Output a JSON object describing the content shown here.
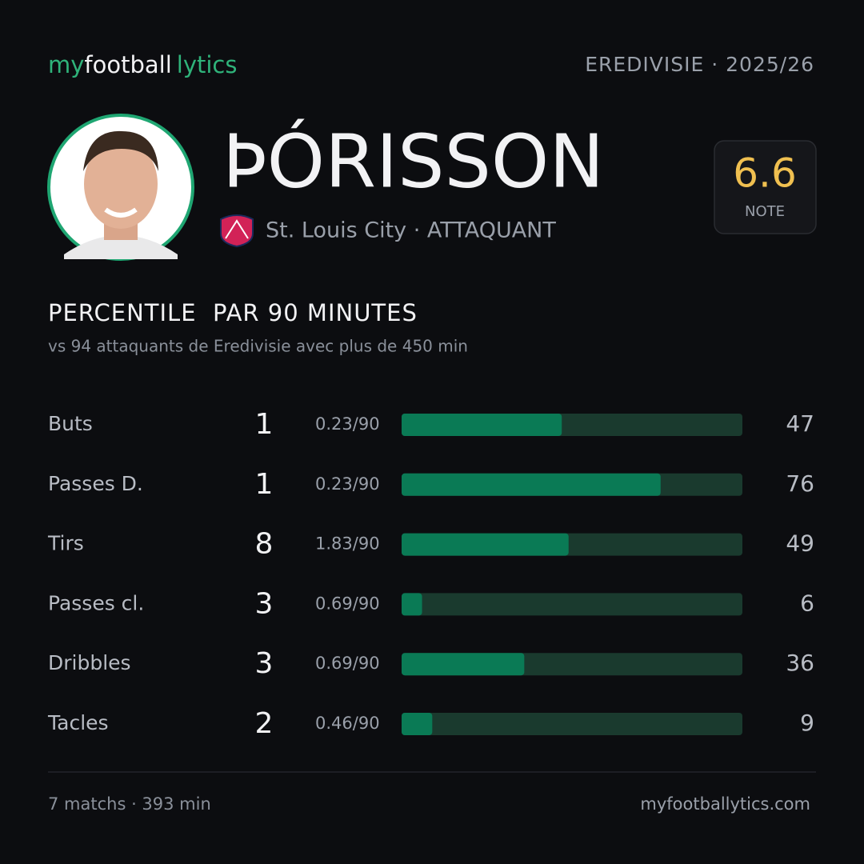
{
  "brand": {
    "my": "my",
    "football": "football",
    "lytics": "lytics"
  },
  "league": "EREDIVISIE · 2025/26",
  "player": {
    "name": "ÞÓRISSON",
    "club": "St. Louis City · ATTAQUANT"
  },
  "rating": {
    "value": 6.6,
    "label": "NOTE"
  },
  "section": {
    "title": "PERCENTILE  PAR 90 MINUTES",
    "subtitle": "vs 94 attaquants de Eredivisie avec plus de 450 min"
  },
  "stats": {
    "xlim": [
      0,
      100
    ],
    "rows": [
      {
        "label": "Buts",
        "total": 1,
        "per90": "0.23/90",
        "percentile": 47
      },
      {
        "label": "Passes D.",
        "total": 1,
        "per90": "0.23/90",
        "percentile": 76
      },
      {
        "label": "Tirs",
        "total": 8,
        "per90": "1.83/90",
        "percentile": 49
      },
      {
        "label": "Passes cl.",
        "total": 3,
        "per90": "0.69/90",
        "percentile": 6
      },
      {
        "label": "Dribbles",
        "total": 3,
        "per90": "0.69/90",
        "percentile": 36
      },
      {
        "label": "Tacles",
        "total": 2,
        "per90": "0.46/90",
        "percentile": 9
      }
    ]
  },
  "footer": {
    "left": "7 matchs · 393 min",
    "right": "myfootballytics.com"
  }
}
